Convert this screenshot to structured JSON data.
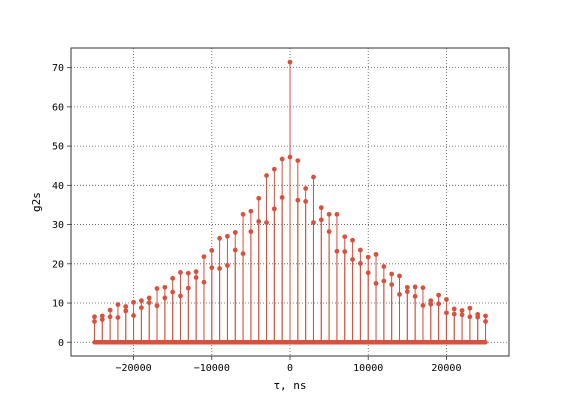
{
  "chart_data": {
    "type": "stem",
    "title": "",
    "xlabel": "τ, ns",
    "ylabel": "g2s",
    "xlim": [
      -28000,
      28000
    ],
    "ylim": [
      -3.5,
      75
    ],
    "xticks": [
      -20000,
      -10000,
      0,
      10000,
      20000
    ],
    "xtick_labels": [
      "−20000",
      "−10000",
      "0",
      "10000",
      "20000"
    ],
    "yticks": [
      0,
      10,
      20,
      30,
      40,
      50,
      60,
      70
    ],
    "ytick_labels": [
      "0",
      "10",
      "20",
      "30",
      "40",
      "50",
      "60",
      "70"
    ],
    "grid": true,
    "grid_style": "dotted",
    "color": "#d9503d",
    "x_range": [
      -25000,
      25000
    ],
    "zero_point_spacing_ns": 100,
    "stems": [
      {
        "x": -25000,
        "y": 6.5
      },
      {
        "x": -25000,
        "y": 5.3
      },
      {
        "x": -24000,
        "y": 6.7
      },
      {
        "x": -24000,
        "y": 5.8
      },
      {
        "x": -23000,
        "y": 8.2
      },
      {
        "x": -23000,
        "y": 6.5
      },
      {
        "x": -22000,
        "y": 9.6
      },
      {
        "x": -22000,
        "y": 6.3
      },
      {
        "x": -21000,
        "y": 9.1
      },
      {
        "x": -21000,
        "y": 8.0
      },
      {
        "x": -20000,
        "y": 10.2
      },
      {
        "x": -20000,
        "y": 6.8
      },
      {
        "x": -19000,
        "y": 10.6
      },
      {
        "x": -19000,
        "y": 8.8
      },
      {
        "x": -18000,
        "y": 11.3
      },
      {
        "x": -18000,
        "y": 10.1
      },
      {
        "x": -17000,
        "y": 13.7
      },
      {
        "x": -17000,
        "y": 9.3
      },
      {
        "x": -16000,
        "y": 14.0
      },
      {
        "x": -16000,
        "y": 11.3
      },
      {
        "x": -15000,
        "y": 16.3
      },
      {
        "x": -15000,
        "y": 12.8
      },
      {
        "x": -14000,
        "y": 17.8
      },
      {
        "x": -14000,
        "y": 11.8
      },
      {
        "x": -13000,
        "y": 17.6
      },
      {
        "x": -13000,
        "y": 13.8
      },
      {
        "x": -12000,
        "y": 18.0
      },
      {
        "x": -12000,
        "y": 16.5
      },
      {
        "x": -11000,
        "y": 21.8
      },
      {
        "x": -11000,
        "y": 15.3
      },
      {
        "x": -10000,
        "y": 23.4
      },
      {
        "x": -10000,
        "y": 19.0
      },
      {
        "x": -9000,
        "y": 26.5
      },
      {
        "x": -9000,
        "y": 18.8
      },
      {
        "x": -8000,
        "y": 27.0
      },
      {
        "x": -8000,
        "y": 19.6
      },
      {
        "x": -7000,
        "y": 28.0
      },
      {
        "x": -7000,
        "y": 23.5
      },
      {
        "x": -6000,
        "y": 32.6
      },
      {
        "x": -6000,
        "y": 22.6
      },
      {
        "x": -5000,
        "y": 33.4
      },
      {
        "x": -5000,
        "y": 28.2
      },
      {
        "x": -4000,
        "y": 36.7
      },
      {
        "x": -4000,
        "y": 30.8
      },
      {
        "x": -3000,
        "y": 42.5
      },
      {
        "x": -3000,
        "y": 30.5
      },
      {
        "x": -2000,
        "y": 44.1
      },
      {
        "x": -2000,
        "y": 34.0
      },
      {
        "x": -1000,
        "y": 46.7
      },
      {
        "x": -1000,
        "y": 36.9
      },
      {
        "x": 0,
        "y": 71.4
      },
      {
        "x": 0,
        "y": 47.2
      },
      {
        "x": 1000,
        "y": 46.3
      },
      {
        "x": 1000,
        "y": 36.2
      },
      {
        "x": 2000,
        "y": 39.2
      },
      {
        "x": 2000,
        "y": 35.9
      },
      {
        "x": 3000,
        "y": 42.1
      },
      {
        "x": 3000,
        "y": 30.5
      },
      {
        "x": 4000,
        "y": 34.3
      },
      {
        "x": 4000,
        "y": 31.2
      },
      {
        "x": 5000,
        "y": 32.6
      },
      {
        "x": 5000,
        "y": 28.2
      },
      {
        "x": 6000,
        "y": 32.6
      },
      {
        "x": 6000,
        "y": 23.2
      },
      {
        "x": 7000,
        "y": 26.9
      },
      {
        "x": 7000,
        "y": 23.1
      },
      {
        "x": 8000,
        "y": 26.0
      },
      {
        "x": 8000,
        "y": 21.1
      },
      {
        "x": 9000,
        "y": 23.5
      },
      {
        "x": 9000,
        "y": 20.1
      },
      {
        "x": 10000,
        "y": 21.7
      },
      {
        "x": 10000,
        "y": 17.7
      },
      {
        "x": 11000,
        "y": 22.4
      },
      {
        "x": 11000,
        "y": 15.0
      },
      {
        "x": 12000,
        "y": 19.3
      },
      {
        "x": 12000,
        "y": 15.6
      },
      {
        "x": 13000,
        "y": 17.4
      },
      {
        "x": 13000,
        "y": 14.7
      },
      {
        "x": 14000,
        "y": 16.9
      },
      {
        "x": 14000,
        "y": 12.2
      },
      {
        "x": 15000,
        "y": 14.0
      },
      {
        "x": 15000,
        "y": 12.9
      },
      {
        "x": 16000,
        "y": 14.1
      },
      {
        "x": 16000,
        "y": 11.7
      },
      {
        "x": 17000,
        "y": 13.9
      },
      {
        "x": 17000,
        "y": 9.4
      },
      {
        "x": 18000,
        "y": 10.6
      },
      {
        "x": 18000,
        "y": 9.7
      },
      {
        "x": 19000,
        "y": 12.0
      },
      {
        "x": 19000,
        "y": 9.8
      },
      {
        "x": 20000,
        "y": 10.9
      },
      {
        "x": 20000,
        "y": 7.5
      },
      {
        "x": 21000,
        "y": 8.5
      },
      {
        "x": 21000,
        "y": 7.2
      },
      {
        "x": 22000,
        "y": 8.1
      },
      {
        "x": 22000,
        "y": 7.0
      },
      {
        "x": 23000,
        "y": 8.7
      },
      {
        "x": 23000,
        "y": 6.5
      },
      {
        "x": 24000,
        "y": 7.1
      },
      {
        "x": 24000,
        "y": 6.4
      },
      {
        "x": 25000,
        "y": 6.7
      },
      {
        "x": 25000,
        "y": 5.3
      }
    ]
  }
}
